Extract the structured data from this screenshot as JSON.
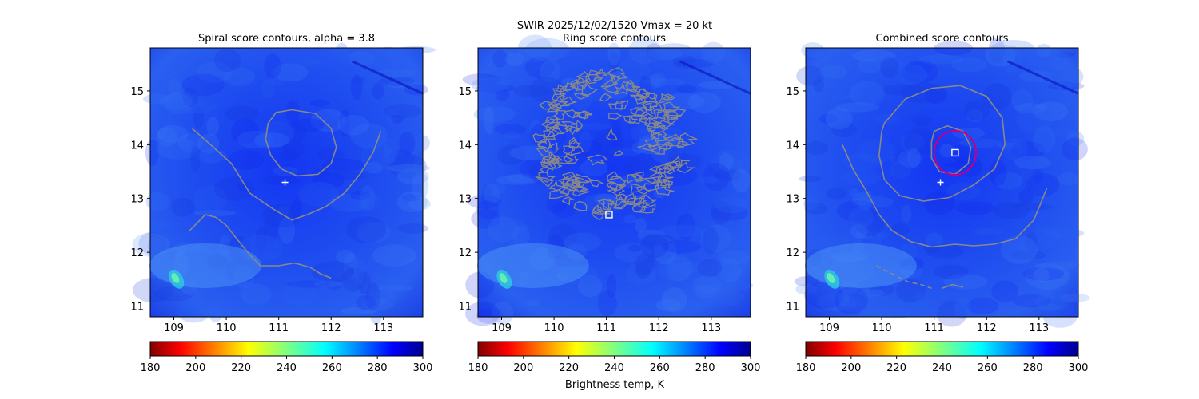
{
  "suptitle": "SWIR  2025/12/02/1520    Vmax = 20 kt",
  "colorbar_label": "Brightness temp, K",
  "chart_data": [
    {
      "type": "heatmap",
      "title": "Spiral score contours, alpha =  3.8",
      "xlim": [
        108.55,
        113.75
      ],
      "ylim": [
        10.8,
        15.8
      ],
      "xticks": [
        109,
        110,
        111,
        112,
        113
      ],
      "yticks": [
        11,
        12,
        13,
        14,
        15
      ],
      "colorbar": {
        "min": 180,
        "max": 300,
        "ticks": [
          180,
          200,
          220,
          240,
          260,
          280,
          300
        ],
        "colormap": "jet_r"
      },
      "markers": [
        {
          "symbol": "plus",
          "x": 111.12,
          "y": 13.3,
          "color": "#ffffff"
        }
      ],
      "contours": [
        {
          "color": "#888888",
          "points": [
            [
              110.8,
              14.4
            ],
            [
              110.75,
              14.1
            ],
            [
              110.85,
              13.8
            ],
            [
              111.05,
              13.55
            ],
            [
              111.35,
              13.42
            ],
            [
              111.75,
              13.45
            ],
            [
              112.0,
              13.65
            ],
            [
              112.1,
              13.95
            ],
            [
              112.0,
              14.3
            ],
            [
              111.7,
              14.58
            ],
            [
              111.25,
              14.65
            ],
            [
              110.95,
              14.6
            ],
            [
              110.8,
              14.4
            ]
          ]
        },
        {
          "color": "#888888",
          "points": [
            [
              109.35,
              14.3
            ],
            [
              109.7,
              14.0
            ],
            [
              110.1,
              13.65
            ],
            [
              110.45,
              13.1
            ],
            [
              110.9,
              12.8
            ],
            [
              111.25,
              12.6
            ],
            [
              111.55,
              12.7
            ],
            [
              111.9,
              12.85
            ],
            [
              112.25,
              13.1
            ],
            [
              112.55,
              13.45
            ],
            [
              112.8,
              13.85
            ],
            [
              112.95,
              14.25
            ]
          ]
        },
        {
          "color": "#888888",
          "points": [
            [
              109.3,
              12.4
            ],
            [
              109.45,
              12.55
            ],
            [
              109.6,
              12.7
            ],
            [
              109.8,
              12.65
            ],
            [
              110.0,
              12.5
            ],
            [
              110.2,
              12.25
            ],
            [
              110.45,
              11.95
            ],
            [
              110.65,
              11.75
            ],
            [
              111.0,
              11.75
            ],
            [
              111.3,
              11.8
            ],
            [
              111.6,
              11.72
            ],
            [
              111.8,
              11.6
            ],
            [
              112.0,
              11.52
            ]
          ]
        }
      ]
    },
    {
      "type": "heatmap",
      "title": "Ring score contours",
      "xlim": [
        108.55,
        113.75
      ],
      "ylim": [
        10.8,
        15.8
      ],
      "xticks": [
        109,
        110,
        111,
        112,
        113
      ],
      "yticks": [
        11,
        12,
        13,
        14,
        15
      ],
      "colorbar": {
        "min": 180,
        "max": 300,
        "ticks": [
          180,
          200,
          220,
          240,
          260,
          280,
          300
        ],
        "colormap": "jet_r"
      },
      "markers": [
        {
          "symbol": "square",
          "x": 111.05,
          "y": 12.7,
          "color": "#ffffff"
        }
      ],
      "contour_region": {
        "center": [
          111.1,
          13.98
        ],
        "radius_x": 1.45,
        "radius_y": 1.4,
        "color": "#888888"
      }
    },
    {
      "type": "heatmap",
      "title": "Combined score contours",
      "xlim": [
        108.55,
        113.75
      ],
      "ylim": [
        10.8,
        15.8
      ],
      "xticks": [
        109,
        110,
        111,
        112,
        113
      ],
      "yticks": [
        11,
        12,
        13,
        14,
        15
      ],
      "colorbar": {
        "min": 180,
        "max": 300,
        "ticks": [
          180,
          200,
          220,
          240,
          260,
          280,
          300
        ],
        "colormap": "jet_r"
      },
      "markers": [
        {
          "symbol": "plus",
          "x": 111.12,
          "y": 13.3,
          "color": "#ffffff"
        },
        {
          "symbol": "square",
          "x": 111.4,
          "y": 13.85,
          "color": "#ffffff"
        },
        {
          "symbol": "circle",
          "x": 111.4,
          "y": 13.85,
          "radius": 0.4,
          "color": "#c0008a"
        }
      ],
      "contours": [
        {
          "color": "#888888",
          "points": [
            [
              111.0,
              14.25
            ],
            [
              111.25,
              14.35
            ],
            [
              111.55,
              14.25
            ],
            [
              111.7,
              13.95
            ],
            [
              111.65,
              13.65
            ],
            [
              111.4,
              13.45
            ],
            [
              111.1,
              13.5
            ],
            [
              110.95,
              13.75
            ],
            [
              110.95,
              14.05
            ],
            [
              111.0,
              14.25
            ]
          ]
        },
        {
          "color": "#888888",
          "points": [
            [
              110.05,
              14.4
            ],
            [
              110.45,
              14.85
            ],
            [
              110.95,
              15.05
            ],
            [
              111.5,
              15.1
            ],
            [
              112.0,
              14.9
            ],
            [
              112.3,
              14.5
            ],
            [
              112.35,
              14.0
            ],
            [
              112.15,
              13.55
            ],
            [
              111.75,
              13.25
            ],
            [
              111.3,
              13.02
            ],
            [
              110.8,
              12.95
            ],
            [
              110.35,
              13.05
            ],
            [
              110.05,
              13.35
            ],
            [
              109.95,
              13.8
            ],
            [
              110.0,
              14.25
            ],
            [
              110.05,
              14.4
            ]
          ]
        },
        {
          "color": "#888888",
          "points": [
            [
              109.25,
              14.0
            ],
            [
              109.45,
              13.55
            ],
            [
              109.7,
              13.15
            ],
            [
              109.95,
              12.7
            ],
            [
              110.2,
              12.4
            ],
            [
              110.55,
              12.2
            ],
            [
              110.95,
              12.1
            ],
            [
              111.4,
              12.15
            ],
            [
              111.75,
              12.12
            ],
            [
              112.15,
              12.15
            ],
            [
              112.55,
              12.25
            ],
            [
              112.75,
              12.45
            ],
            [
              112.9,
              12.6
            ],
            [
              113.05,
              12.95
            ],
            [
              113.15,
              13.2
            ]
          ]
        },
        {
          "color": "#888888",
          "dashed": true,
          "points": [
            [
              109.9,
              11.75
            ],
            [
              110.2,
              11.6
            ],
            [
              110.5,
              11.45
            ],
            [
              110.75,
              11.4
            ],
            [
              110.95,
              11.33
            ]
          ]
        },
        {
          "color": "#888888",
          "points": [
            [
              111.15,
              11.33
            ],
            [
              111.35,
              11.4
            ],
            [
              111.55,
              11.35
            ]
          ]
        }
      ]
    }
  ]
}
